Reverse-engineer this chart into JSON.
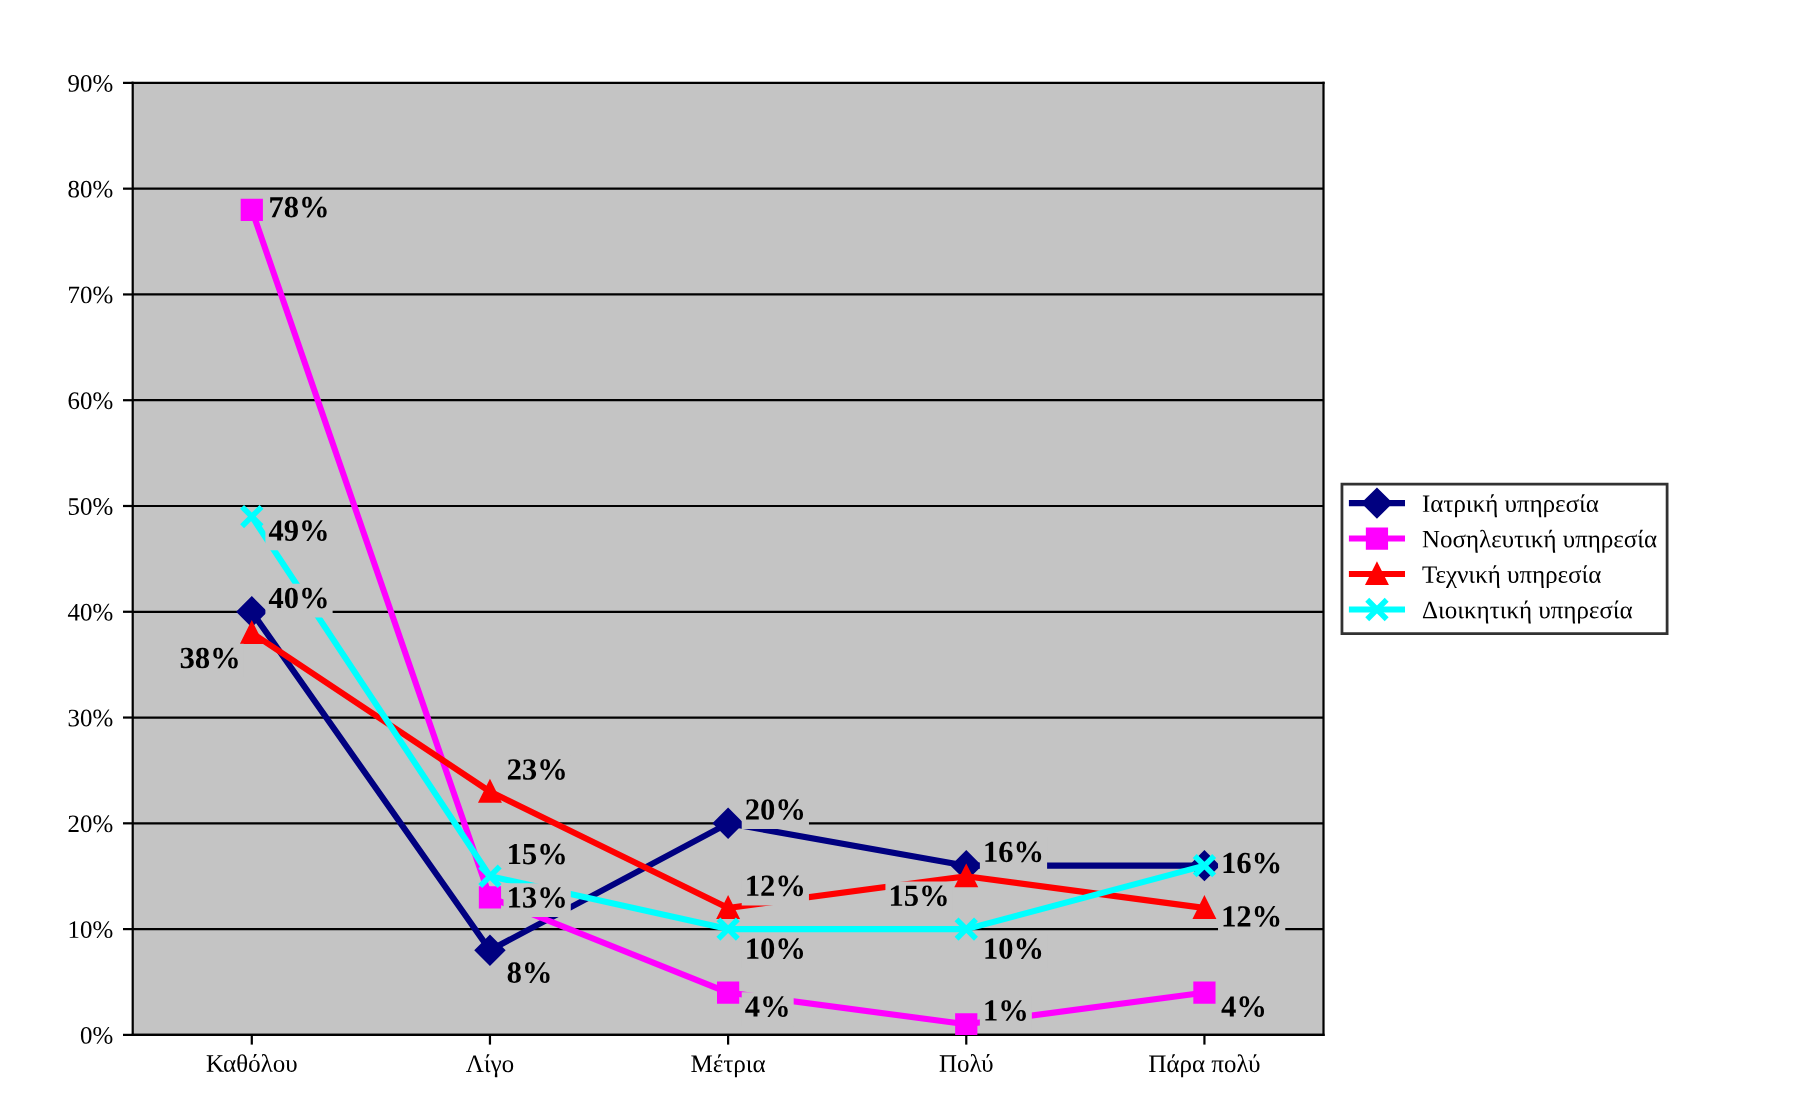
{
  "chart_data": {
    "type": "line",
    "categories": [
      "Καθόλου",
      "Λίγο",
      "Μέτρια",
      "Πολύ",
      "Πάρα πολύ"
    ],
    "series": [
      {
        "name": "Ιατρική υπηρεσία",
        "color": "#000080",
        "marker": "diamond",
        "values": [
          40,
          8,
          20,
          16,
          16
        ],
        "value_labels": [
          "40%",
          "8%",
          "20%",
          "16%",
          "16%"
        ]
      },
      {
        "name": "Νοσηλευτική υπηρεσία",
        "color": "#ff00ff",
        "marker": "square",
        "values": [
          78,
          13,
          4,
          1,
          4
        ],
        "value_labels": [
          "78%",
          "13%",
          "4%",
          "1%",
          "4%"
        ]
      },
      {
        "name": "Τεχνική υπηρεσία",
        "color": "#ff0000",
        "marker": "triangle",
        "values": [
          38,
          23,
          12,
          15,
          12
        ],
        "value_labels": [
          "38%",
          "23%",
          "12%",
          "15%",
          "12%"
        ]
      },
      {
        "name": "Διοικητική υπηρεσία",
        "color": "#00ffff",
        "marker": "cross",
        "values": [
          49,
          15,
          10,
          10,
          16
        ],
        "value_labels": [
          "49%",
          "15%",
          "10%",
          "10%",
          null
        ]
      }
    ],
    "ylim": [
      0,
      90
    ],
    "yticks": [
      {
        "value": 0,
        "label": "0%"
      },
      {
        "value": 10,
        "label": "10%"
      },
      {
        "value": 20,
        "label": "20%"
      },
      {
        "value": 30,
        "label": "30%"
      },
      {
        "value": 40,
        "label": "40%"
      },
      {
        "value": 50,
        "label": "50%"
      },
      {
        "value": 60,
        "label": "60%"
      },
      {
        "value": 70,
        "label": "70%"
      },
      {
        "value": 80,
        "label": "80%"
      },
      {
        "value": 90,
        "label": "90%"
      }
    ],
    "grid": "y",
    "legend": "right",
    "line_style": "solid"
  }
}
